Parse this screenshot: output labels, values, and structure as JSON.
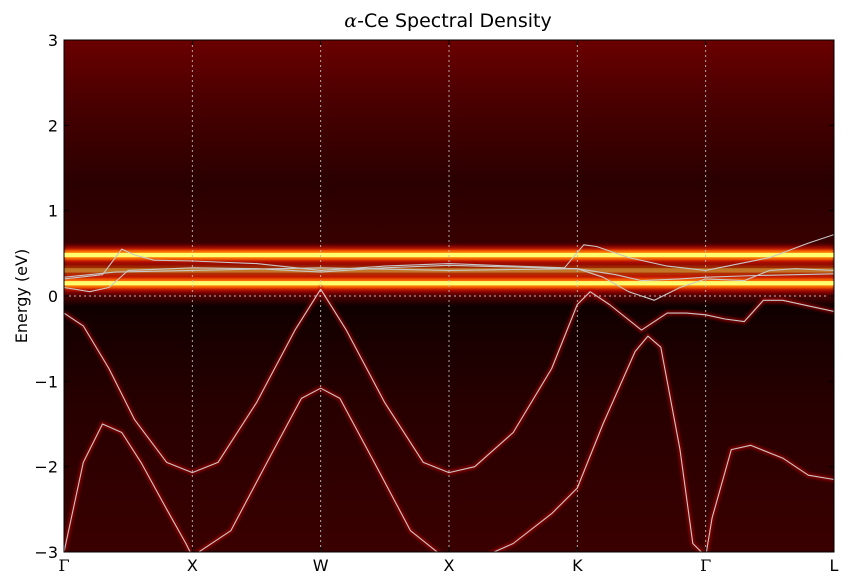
{
  "chart_data": {
    "type": "heatmap",
    "title_symbol": "α",
    "title_text": "-Ce Spectral Density",
    "ylabel": "Energy (eV)",
    "xlabel": "",
    "ylim": [
      -3,
      3
    ],
    "yticks": [
      -3,
      -2,
      -1,
      0,
      1,
      2,
      3
    ],
    "ytick_labels": [
      "−3",
      "−2",
      "−1",
      "0",
      "1",
      "2",
      "3"
    ],
    "xticks": [
      {
        "k": 0,
        "label": "Γ",
        "greek": true
      },
      {
        "k": 1,
        "label": "X",
        "greek": false
      },
      {
        "k": 2,
        "label": "W",
        "greek": false
      },
      {
        "k": 3,
        "label": "X",
        "greek": false
      },
      {
        "k": 4,
        "label": "K",
        "greek": false
      },
      {
        "k": 5,
        "label": "Γ",
        "greek": true
      },
      {
        "k": 6,
        "label": "L",
        "greek": false
      }
    ],
    "xlim": [
      0,
      6
    ],
    "fermi_level": 0,
    "grid": "vertical dotted lines at high-symmetry points",
    "colormap": [
      "#000000",
      "#5a0000",
      "#b50000",
      "#ff2a00",
      "#ff9a00",
      "#ffff5a"
    ],
    "flat_bands": [
      {
        "energy": 0.48,
        "intensity": 1.0
      },
      {
        "energy": 0.15,
        "intensity": 1.0
      },
      {
        "energy": 0.3,
        "intensity": 0.35
      }
    ],
    "series": [
      {
        "points": [
          [
            0,
            -3.0
          ],
          [
            0.15,
            -1.95
          ],
          [
            0.3,
            -1.5
          ],
          [
            0.45,
            -1.6
          ],
          [
            0.6,
            -1.95
          ],
          [
            0.8,
            -2.5
          ],
          [
            0.95,
            -2.9
          ],
          [
            1.0,
            -3.05
          ],
          [
            1.3,
            -2.75
          ],
          [
            1.6,
            -1.9
          ],
          [
            1.85,
            -1.2
          ],
          [
            2.0,
            -1.08
          ],
          [
            2.15,
            -1.2
          ],
          [
            2.4,
            -1.9
          ],
          [
            2.7,
            -2.75
          ],
          [
            2.95,
            -3.05
          ],
          [
            3.2,
            -3.1
          ],
          [
            3.5,
            -2.9
          ],
          [
            3.8,
            -2.55
          ],
          [
            4.0,
            -2.25
          ],
          [
            4.2,
            -1.5
          ],
          [
            4.45,
            -0.65
          ],
          [
            4.55,
            -0.47
          ],
          [
            4.65,
            -0.6
          ],
          [
            4.8,
            -1.8
          ],
          [
            4.9,
            -2.9
          ],
          [
            5.0,
            -3.05
          ]
        ]
      },
      {
        "points": [
          [
            0,
            -0.2
          ],
          [
            0.15,
            -0.35
          ],
          [
            0.35,
            -0.85
          ],
          [
            0.55,
            -1.45
          ],
          [
            0.8,
            -1.95
          ],
          [
            1.0,
            -2.07
          ],
          [
            1.2,
            -1.95
          ],
          [
            1.5,
            -1.25
          ],
          [
            1.8,
            -0.4
          ],
          [
            2.0,
            0.08
          ],
          [
            2.2,
            -0.4
          ],
          [
            2.5,
            -1.25
          ],
          [
            2.8,
            -1.95
          ],
          [
            3.0,
            -2.07
          ],
          [
            3.2,
            -2.0
          ],
          [
            3.5,
            -1.6
          ],
          [
            3.8,
            -0.85
          ],
          [
            4.0,
            -0.1
          ],
          [
            4.1,
            0.05
          ],
          [
            4.25,
            -0.1
          ],
          [
            4.5,
            -0.4
          ],
          [
            4.7,
            -0.2
          ],
          [
            4.85,
            -0.2
          ],
          [
            5.0,
            -0.22
          ],
          [
            5.15,
            -0.27
          ],
          [
            5.3,
            -0.3
          ],
          [
            5.45,
            -0.05
          ],
          [
            5.6,
            -0.05
          ],
          [
            6.0,
            -0.18
          ]
        ]
      },
      {
        "points": [
          [
            5.0,
            -3.05
          ],
          [
            5.05,
            -2.6
          ],
          [
            5.2,
            -1.8
          ],
          [
            5.35,
            -1.75
          ],
          [
            5.6,
            -1.9
          ],
          [
            5.8,
            -2.1
          ],
          [
            6.0,
            -2.15
          ]
        ]
      },
      {
        "points": [
          [
            0,
            0.2
          ],
          [
            0.3,
            0.25
          ],
          [
            0.45,
            0.55
          ],
          [
            0.55,
            0.48
          ],
          [
            0.7,
            0.42
          ],
          [
            1.0,
            0.41
          ],
          [
            1.5,
            0.38
          ],
          [
            2.0,
            0.3
          ],
          [
            2.5,
            0.35
          ],
          [
            3.0,
            0.38
          ],
          [
            3.5,
            0.35
          ],
          [
            3.9,
            0.33
          ],
          [
            4.05,
            0.6
          ],
          [
            4.15,
            0.58
          ],
          [
            4.4,
            0.45
          ],
          [
            4.7,
            0.35
          ],
          [
            5.0,
            0.3
          ],
          [
            5.5,
            0.45
          ],
          [
            5.8,
            0.62
          ],
          [
            6.0,
            0.72
          ]
        ]
      },
      {
        "points": [
          [
            0,
            0.1
          ],
          [
            0.2,
            0.05
          ],
          [
            0.35,
            0.1
          ],
          [
            0.5,
            0.3
          ],
          [
            1.0,
            0.33
          ],
          [
            1.5,
            0.32
          ],
          [
            2.0,
            0.28
          ],
          [
            2.5,
            0.33
          ],
          [
            3.0,
            0.36
          ],
          [
            3.5,
            0.34
          ],
          [
            4.0,
            0.32
          ],
          [
            4.2,
            0.22
          ],
          [
            4.4,
            0.05
          ],
          [
            4.6,
            -0.05
          ],
          [
            4.8,
            0.1
          ],
          [
            5.0,
            0.2
          ],
          [
            5.3,
            0.18
          ],
          [
            5.5,
            0.3
          ],
          [
            5.7,
            0.32
          ],
          [
            6.0,
            0.3
          ]
        ]
      },
      {
        "points": [
          [
            0,
            0.22
          ],
          [
            0.4,
            0.28
          ],
          [
            1.0,
            0.3
          ],
          [
            2.0,
            0.33
          ],
          [
            3.0,
            0.3
          ],
          [
            4.0,
            0.32
          ],
          [
            4.3,
            0.25
          ],
          [
            4.5,
            0.18
          ],
          [
            4.8,
            0.2
          ],
          [
            5.0,
            0.22
          ],
          [
            5.4,
            0.24
          ],
          [
            6.0,
            0.26
          ]
        ]
      }
    ],
    "line_color": "#c8c8c8"
  }
}
